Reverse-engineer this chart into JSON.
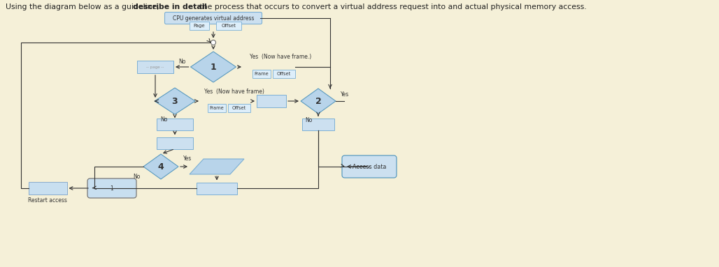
{
  "title_normal": "Using the diagram below as a guideline, ",
  "title_bold": "describe in detail",
  "title_end": " the process that occurs to convert a virtual address request into and actual physical memory access.",
  "bg_color": "#f5f0d8",
  "box_fill": "#cce0f0",
  "box_edge": "#7bafd4",
  "diamond_fill": "#b8d4ea",
  "diamond_edge": "#5a9abf",
  "para_fill": "#b8d4ea",
  "arr_color": "#333333",
  "text_color": "#222222"
}
